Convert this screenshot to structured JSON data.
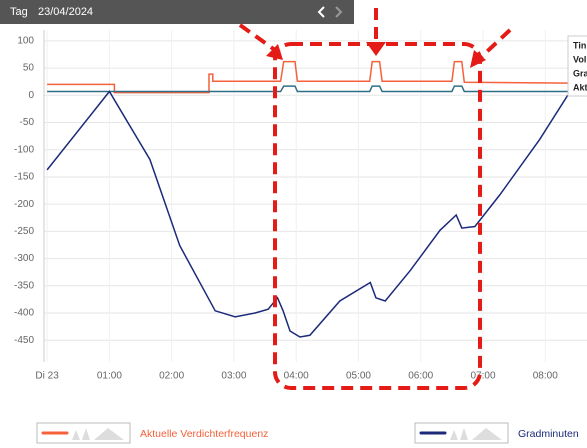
{
  "chart_data": {
    "type": "line",
    "header": {
      "label": "Tag",
      "date": "23/04/2024"
    },
    "tooltip": [
      "Tin",
      "Vol",
      "Gra",
      "Akt"
    ],
    "xlim": [
      -0.05,
      8.67
    ],
    "xticks": [
      {
        "value": 0,
        "label": "Di 23"
      },
      {
        "value": 1,
        "label": "01:00"
      },
      {
        "value": 2,
        "label": "02:00"
      },
      {
        "value": 3,
        "label": "03:00"
      },
      {
        "value": 4,
        "label": "04:00"
      },
      {
        "value": 5,
        "label": "05:00"
      },
      {
        "value": 6,
        "label": "06:00"
      },
      {
        "value": 7,
        "label": "07:00"
      },
      {
        "value": 8,
        "label": "08:00"
      }
    ],
    "ylim": [
      -490,
      120
    ],
    "yticks": [
      100,
      50,
      0,
      -50,
      -100,
      -150,
      -200,
      -250,
      -300,
      -350,
      -400,
      -450
    ],
    "grid": true,
    "series": [
      {
        "name": "Aktuelle Verdichterfrequenz",
        "color": "#f4613a",
        "legend": true,
        "x": [
          0,
          1.08,
          1.08,
          2.6,
          2.6,
          2.66,
          2.66,
          3.75,
          3.8,
          3.98,
          4.02,
          5.18,
          5.22,
          5.34,
          5.38,
          6.5,
          6.54,
          6.66,
          6.7,
          8.67
        ],
        "values": [
          20,
          20,
          5,
          5,
          39,
          39,
          26,
          26,
          62,
          62,
          26,
          26,
          62,
          62,
          26,
          26,
          62,
          62,
          24,
          22
        ]
      },
      {
        "color": "#2f6f86",
        "x": [
          0,
          3.75,
          3.8,
          3.98,
          4.02,
          5.18,
          5.22,
          5.34,
          5.38,
          6.5,
          6.54,
          6.66,
          6.7,
          8.67
        ],
        "values": [
          7,
          7,
          17,
          17,
          7,
          7,
          17,
          17,
          7,
          7,
          17,
          17,
          7,
          7
        ]
      },
      {
        "name": "Gradminuten",
        "color": "#1c2a7a",
        "legend": true,
        "x": [
          0,
          1.0,
          1.65,
          2.13,
          2.7,
          3.02,
          3.34,
          3.55,
          3.7,
          3.79,
          3.9,
          4.06,
          4.22,
          4.7,
          5.19,
          5.28,
          5.43,
          5.83,
          6.31,
          6.57,
          6.66,
          6.87,
          7.27,
          7.91,
          8.36
        ],
        "values": [
          -137,
          7,
          -118,
          -276,
          -396,
          -407,
          -400,
          -393,
          -372,
          -396,
          -433,
          -444,
          -441,
          -378,
          -344,
          -372,
          -378,
          -322,
          -248,
          -220,
          -244,
          -241,
          -183,
          -81,
          0
        ]
      }
    ]
  }
}
